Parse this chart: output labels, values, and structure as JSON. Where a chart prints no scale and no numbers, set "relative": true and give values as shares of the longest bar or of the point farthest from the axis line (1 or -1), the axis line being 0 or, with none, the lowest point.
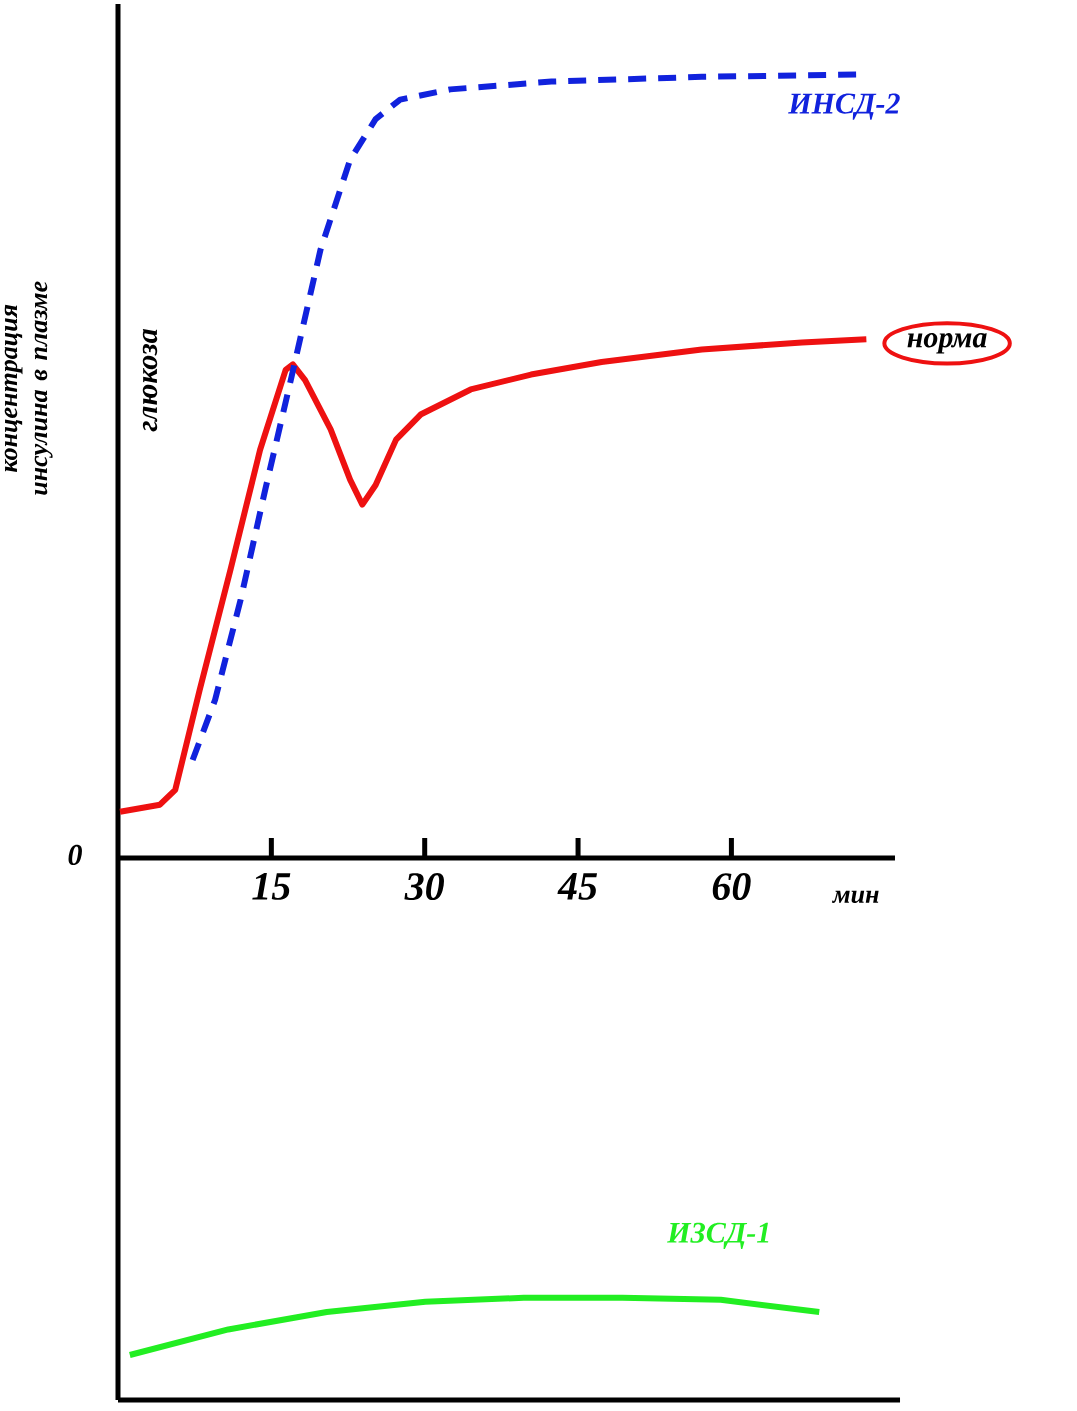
{
  "chart_data": [
    {
      "type": "line",
      "relative": true,
      "xlim": [
        0,
        76
      ],
      "xticks": [
        15,
        30,
        45,
        60
      ],
      "xlabel": "мин",
      "ylabel": "концентрация инсулина в плазме",
      "legend": "right",
      "marker": "none",
      "annotations": [
        "глюкоза",
        "0"
      ],
      "series": [
        {
          "name": "норма",
          "color": "#ee1111",
          "line_style": "solid",
          "x": [
            0.2,
            4.1,
            5.6,
            8.0,
            11.0,
            13.9,
            16.4,
            17.1,
            18.3,
            20.8,
            22.7,
            23.9,
            25.2,
            27.2,
            29.6,
            34.5,
            40.4,
            47.3,
            57.1,
            66.9,
            73.2
          ],
          "values": [
            0.059,
            0.068,
            0.087,
            0.215,
            0.368,
            0.521,
            0.623,
            0.63,
            0.61,
            0.547,
            0.483,
            0.451,
            0.476,
            0.534,
            0.566,
            0.598,
            0.617,
            0.633,
            0.649,
            0.658,
            0.662
          ]
        },
        {
          "name": "ИНСД-2",
          "color": "#1122dd",
          "line_style": "dashed",
          "x": [
            7.3,
            9.5,
            12.0,
            14.4,
            16.9,
            19.8,
            22.7,
            25.2,
            27.6,
            32.5,
            42.4,
            57.1,
            72.7
          ],
          "values": [
            0.125,
            0.202,
            0.33,
            0.47,
            0.61,
            0.776,
            0.891,
            0.943,
            0.968,
            0.981,
            0.991,
            0.997,
            1.0
          ]
        }
      ]
    },
    {
      "type": "line",
      "relative": true,
      "categories": [
        null,
        null,
        null,
        null,
        null,
        null,
        null,
        null
      ],
      "legend": false,
      "marker": "none",
      "series": [
        {
          "name": "ИЗСД-1",
          "color": "#22ee22",
          "line_style": "solid",
          "values": [
            0.44,
            0.69,
            0.86,
            0.96,
            1.0,
            1.0,
            0.98,
            0.86
          ]
        }
      ]
    }
  ]
}
